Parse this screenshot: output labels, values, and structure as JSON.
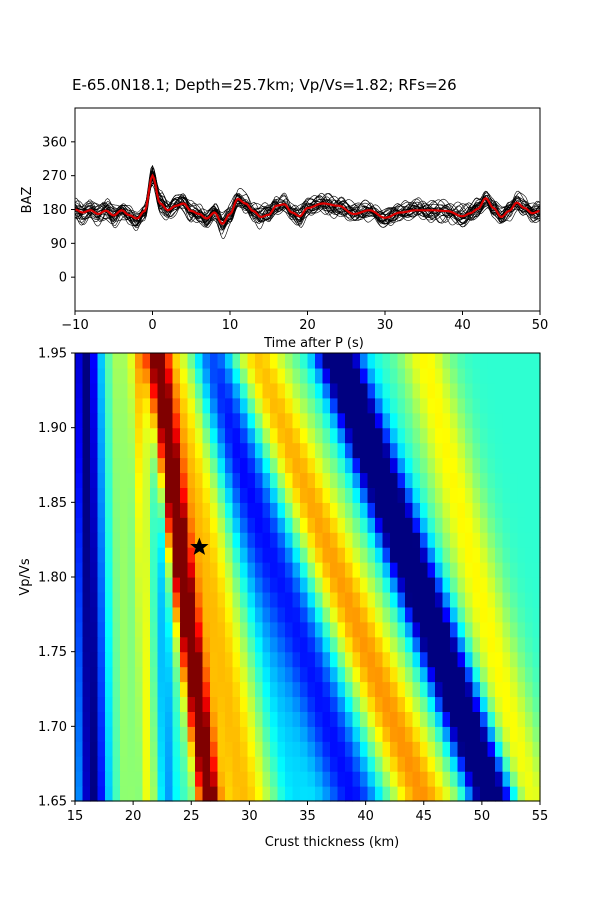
{
  "title": "E-65.0N18.1; Depth=25.7km; Vp/Vs=1.82; RFs=26",
  "chart_data": [
    {
      "type": "line",
      "title": "",
      "xlabel": "Time after P (s)",
      "ylabel": "BAZ",
      "xlim": [
        -10,
        50
      ],
      "ylim": [
        -90,
        450
      ],
      "xticks": [
        "−10",
        "0",
        "10",
        "20",
        "30",
        "40",
        "50"
      ],
      "yticks": [
        "0",
        "90",
        "180",
        "270",
        "360"
      ],
      "baseline": 180,
      "trace_count": 26,
      "trace_color": "#000000",
      "stack_color": "#dd0000",
      "stack": {
        "t": [
          -10,
          -9,
          -8,
          -7,
          -6,
          -5,
          -4,
          -3,
          -2,
          -1,
          0,
          1,
          2,
          3,
          4,
          5,
          6,
          7,
          8,
          9,
          10,
          11,
          12,
          13,
          14,
          15,
          16,
          17,
          18,
          19,
          20,
          22,
          24,
          26,
          28,
          30,
          32,
          34,
          36,
          38,
          40,
          41,
          42,
          43,
          44,
          45,
          46,
          47,
          48,
          49,
          50
        ],
        "y": [
          180,
          172,
          178,
          168,
          177,
          164,
          178,
          165,
          156,
          176,
          270,
          196,
          178,
          190,
          196,
          176,
          168,
          156,
          172,
          142,
          168,
          208,
          196,
          176,
          160,
          166,
          190,
          194,
          172,
          162,
          184,
          196,
          190,
          168,
          178,
          158,
          172,
          178,
          178,
          176,
          162,
          170,
          182,
          210,
          184,
          160,
          176,
          198,
          184,
          170,
          176
        ]
      }
    },
    {
      "type": "heatmap",
      "title": "",
      "xlabel": "Crust thickness (km)",
      "ylabel": "Vp/Vs",
      "xlim": [
        15,
        55
      ],
      "ylim": [
        1.65,
        1.95
      ],
      "xticks": [
        "15",
        "20",
        "25",
        "30",
        "35",
        "40",
        "45",
        "50",
        "55"
      ],
      "yticks": [
        "1.65",
        "1.70",
        "1.75",
        "1.80",
        "1.85",
        "1.90",
        "1.95"
      ],
      "colormap": "jet",
      "best_H": 25.7,
      "best_k": 1.82,
      "ridges": [
        {
          "H0": 16.5,
          "slope": -2,
          "width": 1.2,
          "amp": -1.0
        },
        {
          "H0": 19.5,
          "slope": -3,
          "width": 1.0,
          "amp": 0.25
        },
        {
          "H0": 21.3,
          "slope": -3,
          "width": 0.7,
          "amp": 0.45
        },
        {
          "H0": 23.0,
          "slope": -3,
          "width": 0.7,
          "amp": -0.35
        },
        {
          "H0": 26.5,
          "slope": -15,
          "width": 0.9,
          "amp": 1.45
        },
        {
          "H0": 29.5,
          "slope": -20,
          "width": 3.0,
          "amp": 0.65
        },
        {
          "H0": 33.5,
          "slope": -22,
          "width": 1.8,
          "amp": -0.25
        },
        {
          "H0": 39.0,
          "slope": -40,
          "width": 2.6,
          "amp": -0.7
        },
        {
          "H0": 45.0,
          "slope": -50,
          "width": 3.0,
          "amp": 0.75
        },
        {
          "H0": 51.0,
          "slope": -45,
          "width": 1.8,
          "amp": -1.6
        },
        {
          "H0": 54.0,
          "slope": -30,
          "width": 2.2,
          "amp": 0.5
        }
      ]
    }
  ]
}
